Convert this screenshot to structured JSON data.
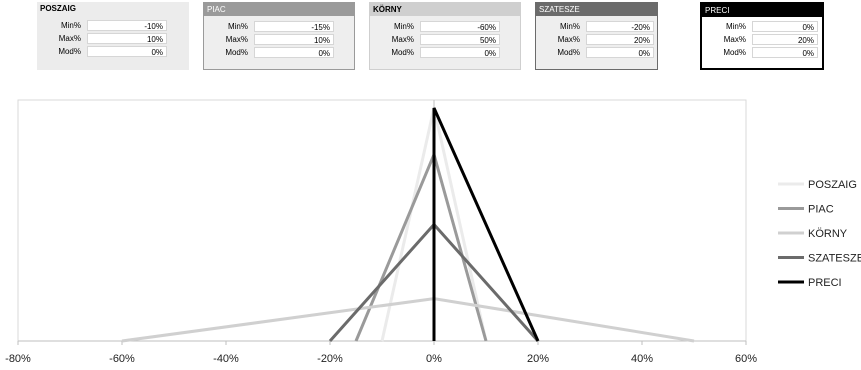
{
  "parameters": [
    {
      "name": "POSZAIG",
      "rows": [
        {
          "label": "Min%",
          "value": "-10%"
        },
        {
          "label": "Max%",
          "value": "10%"
        },
        {
          "label": "Mod%",
          "value": "0%"
        }
      ]
    },
    {
      "name": "PIAC",
      "rows": [
        {
          "label": "Min%",
          "value": "-15%"
        },
        {
          "label": "Max%",
          "value": "10%"
        },
        {
          "label": "Mod%",
          "value": "0%"
        }
      ]
    },
    {
      "name": "KÖRNY",
      "rows": [
        {
          "label": "Min%",
          "value": "-60%"
        },
        {
          "label": "Max%",
          "value": "50%"
        },
        {
          "label": "Mod%",
          "value": "0%"
        }
      ]
    },
    {
      "name": "SZATESZE",
      "rows": [
        {
          "label": "Min%",
          "value": "-20%"
        },
        {
          "label": "Max%",
          "value": "20%"
        },
        {
          "label": "Mod%",
          "value": "0%"
        }
      ]
    },
    {
      "name": "PRECI",
      "rows": [
        {
          "label": "Min%",
          "value": "0%"
        },
        {
          "label": "Max%",
          "value": "20%"
        },
        {
          "label": "Mod%",
          "value": "0%"
        }
      ]
    }
  ],
  "chart_data": {
    "type": "line",
    "title": "",
    "xlabel": "",
    "ylabel": "",
    "xlim": [
      -0.8,
      0.6
    ],
    "ylim": [
      0,
      1
    ],
    "x_ticks": [
      -0.8,
      -0.6,
      -0.4,
      -0.2,
      0,
      0.2,
      0.4,
      0.6
    ],
    "x_tick_labels": [
      "-80%",
      "-60%",
      "-40%",
      "-20%",
      "0%",
      "20%",
      "40%",
      "60%"
    ],
    "grid": false,
    "legend_position": "right",
    "series": [
      {
        "name": "POSZAIG",
        "color": "#ebebeb",
        "width": 3,
        "points": [
          [
            -0.1,
            0
          ],
          [
            0,
            1
          ],
          [
            0.1,
            0
          ]
        ]
      },
      {
        "name": "PIAC",
        "color": "#9a9a9a",
        "width": 3,
        "points": [
          [
            -0.15,
            0
          ],
          [
            0,
            0.8
          ],
          [
            0.1,
            0
          ]
        ]
      },
      {
        "name": "KÖRNY",
        "color": "#d0d0d0",
        "width": 3,
        "points": [
          [
            -0.6,
            0
          ],
          [
            0,
            0.182
          ],
          [
            0.5,
            0
          ]
        ]
      },
      {
        "name": "SZATESZE",
        "color": "#6b6b6b",
        "width": 3,
        "points": [
          [
            -0.2,
            0
          ],
          [
            0,
            0.5
          ],
          [
            0.2,
            0
          ]
        ]
      },
      {
        "name": "PRECI",
        "color": "#000000",
        "width": 3,
        "points": [
          [
            0,
            0
          ],
          [
            0,
            1
          ],
          [
            0.2,
            0
          ]
        ]
      }
    ]
  }
}
